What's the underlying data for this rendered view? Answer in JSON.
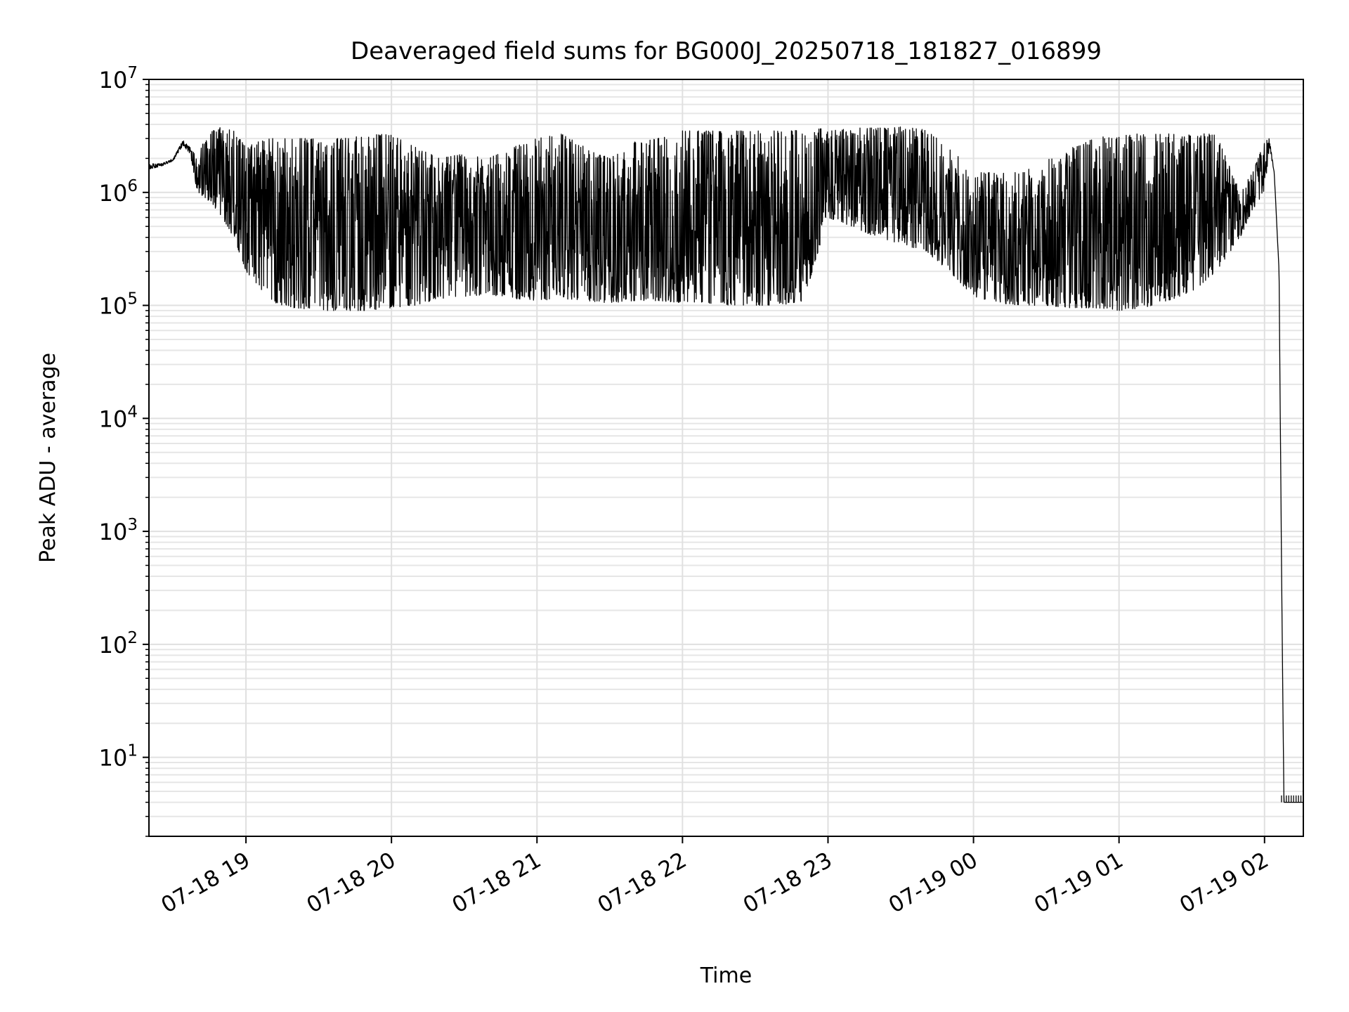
{
  "chart_data": {
    "type": "line",
    "title": "Deaveraged field sums for BG000J_20250718_181827_016899",
    "xlabel": "Time",
    "ylabel": "Peak ADU - average",
    "yscale": "log",
    "ylim": [
      2,
      10000000
    ],
    "xlim": [
      "2025-07-18 18:20",
      "2025-07-19 02:16"
    ],
    "grid": true,
    "legend": "none",
    "line_color": "#000000",
    "x_ticks": [
      {
        "value": "2025-07-18 19:00",
        "label": "07-18 19"
      },
      {
        "value": "2025-07-18 20:00",
        "label": "07-18 20"
      },
      {
        "value": "2025-07-18 21:00",
        "label": "07-18 21"
      },
      {
        "value": "2025-07-18 22:00",
        "label": "07-18 22"
      },
      {
        "value": "2025-07-18 23:00",
        "label": "07-18 23"
      },
      {
        "value": "2025-07-19 00:00",
        "label": "07-19 00"
      },
      {
        "value": "2025-07-19 01:00",
        "label": "07-19 01"
      },
      {
        "value": "2025-07-19 02:00",
        "label": "07-19 02"
      }
    ],
    "y_ticks": [
      {
        "value": 10,
        "base": "10",
        "exp": "1"
      },
      {
        "value": 100,
        "base": "10",
        "exp": "2"
      },
      {
        "value": 1000,
        "base": "10",
        "exp": "3"
      },
      {
        "value": 10000,
        "base": "10",
        "exp": "4"
      },
      {
        "value": 100000,
        "base": "10",
        "exp": "5"
      },
      {
        "value": 1000000,
        "base": "10",
        "exp": "6"
      },
      {
        "value": 10000000,
        "base": "10",
        "exp": "7"
      }
    ],
    "series": [
      {
        "x": [
          "2025-07-18 18:20",
          "2025-07-18 18:25",
          "2025-07-18 18:30",
          "2025-07-18 18:34",
          "2025-07-18 18:37",
          "2025-07-18 18:40",
          "2025-07-18 18:43",
          "2025-07-18 18:46",
          "2025-07-18 18:50",
          "2025-07-18 18:55",
          "2025-07-18 19:00",
          "2025-07-18 19:05",
          "2025-07-18 19:10",
          "2025-07-18 19:15",
          "2025-07-18 19:20",
          "2025-07-18 19:30",
          "2025-07-18 19:40",
          "2025-07-18 19:50",
          "2025-07-18 20:00",
          "2025-07-18 20:10",
          "2025-07-18 20:20",
          "2025-07-18 20:30",
          "2025-07-18 20:40",
          "2025-07-18 20:50",
          "2025-07-18 21:00",
          "2025-07-18 21:10",
          "2025-07-18 21:20",
          "2025-07-18 21:30",
          "2025-07-18 21:40",
          "2025-07-18 21:50",
          "2025-07-18 22:00",
          "2025-07-18 22:10",
          "2025-07-18 22:20",
          "2025-07-18 22:30",
          "2025-07-18 22:40",
          "2025-07-18 22:50",
          "2025-07-18 23:00",
          "2025-07-18 23:10",
          "2025-07-18 23:20",
          "2025-07-18 23:30",
          "2025-07-18 23:40",
          "2025-07-18 23:50",
          "2025-07-19 00:00",
          "2025-07-19 00:10",
          "2025-07-19 00:20",
          "2025-07-19 00:30",
          "2025-07-19 00:40",
          "2025-07-19 00:50",
          "2025-07-19 01:00",
          "2025-07-19 01:10",
          "2025-07-19 01:20",
          "2025-07-19 01:30",
          "2025-07-19 01:40",
          "2025-07-19 01:50",
          "2025-07-19 01:55",
          "2025-07-19 02:00",
          "2025-07-19 02:02",
          "2025-07-19 02:04",
          "2025-07-19 02:06",
          "2025-07-19 02:07",
          "2025-07-19 02:08",
          "2025-07-19 02:10",
          "2025-07-19 02:16"
        ],
        "low": [
          1600000,
          1700000,
          1900000,
          2600000,
          2200000,
          1000000,
          900000,
          800000,
          600000,
          400000,
          200000,
          150000,
          110000,
          100000,
          95000,
          90000,
          90000,
          90000,
          95000,
          100000,
          115000,
          120000,
          125000,
          115000,
          110000,
          115000,
          110000,
          105000,
          110000,
          110000,
          105000,
          105000,
          100000,
          100000,
          100000,
          110000,
          600000,
          500000,
          400000,
          350000,
          300000,
          200000,
          120000,
          105000,
          100000,
          100000,
          95000,
          95000,
          90000,
          95000,
          110000,
          130000,
          200000,
          400000,
          700000,
          1000000,
          2500000,
          1500000,
          200000,
          500,
          4,
          4,
          4
        ],
        "high": [
          1800000,
          1800000,
          2000000,
          2900000,
          2500000,
          2000000,
          3000000,
          3500000,
          3800000,
          3500000,
          2500000,
          2800000,
          3000000,
          3000000,
          3000000,
          3000000,
          3000000,
          3200000,
          3300000,
          2500000,
          2000000,
          2200000,
          2000000,
          2500000,
          3000000,
          3300000,
          2500000,
          2000000,
          2800000,
          3000000,
          3500000,
          3500000,
          3500000,
          3500000,
          3500000,
          3600000,
          3700000,
          3800000,
          3700000,
          3800000,
          3600000,
          2500000,
          1500000,
          1500000,
          1500000,
          2000000,
          2500000,
          3000000,
          3300000,
          3300000,
          3300000,
          3300000,
          3300000,
          1000000,
          1500000,
          2800000,
          3000000,
          1500000,
          200000,
          500,
          4,
          4,
          4
        ]
      }
    ]
  }
}
